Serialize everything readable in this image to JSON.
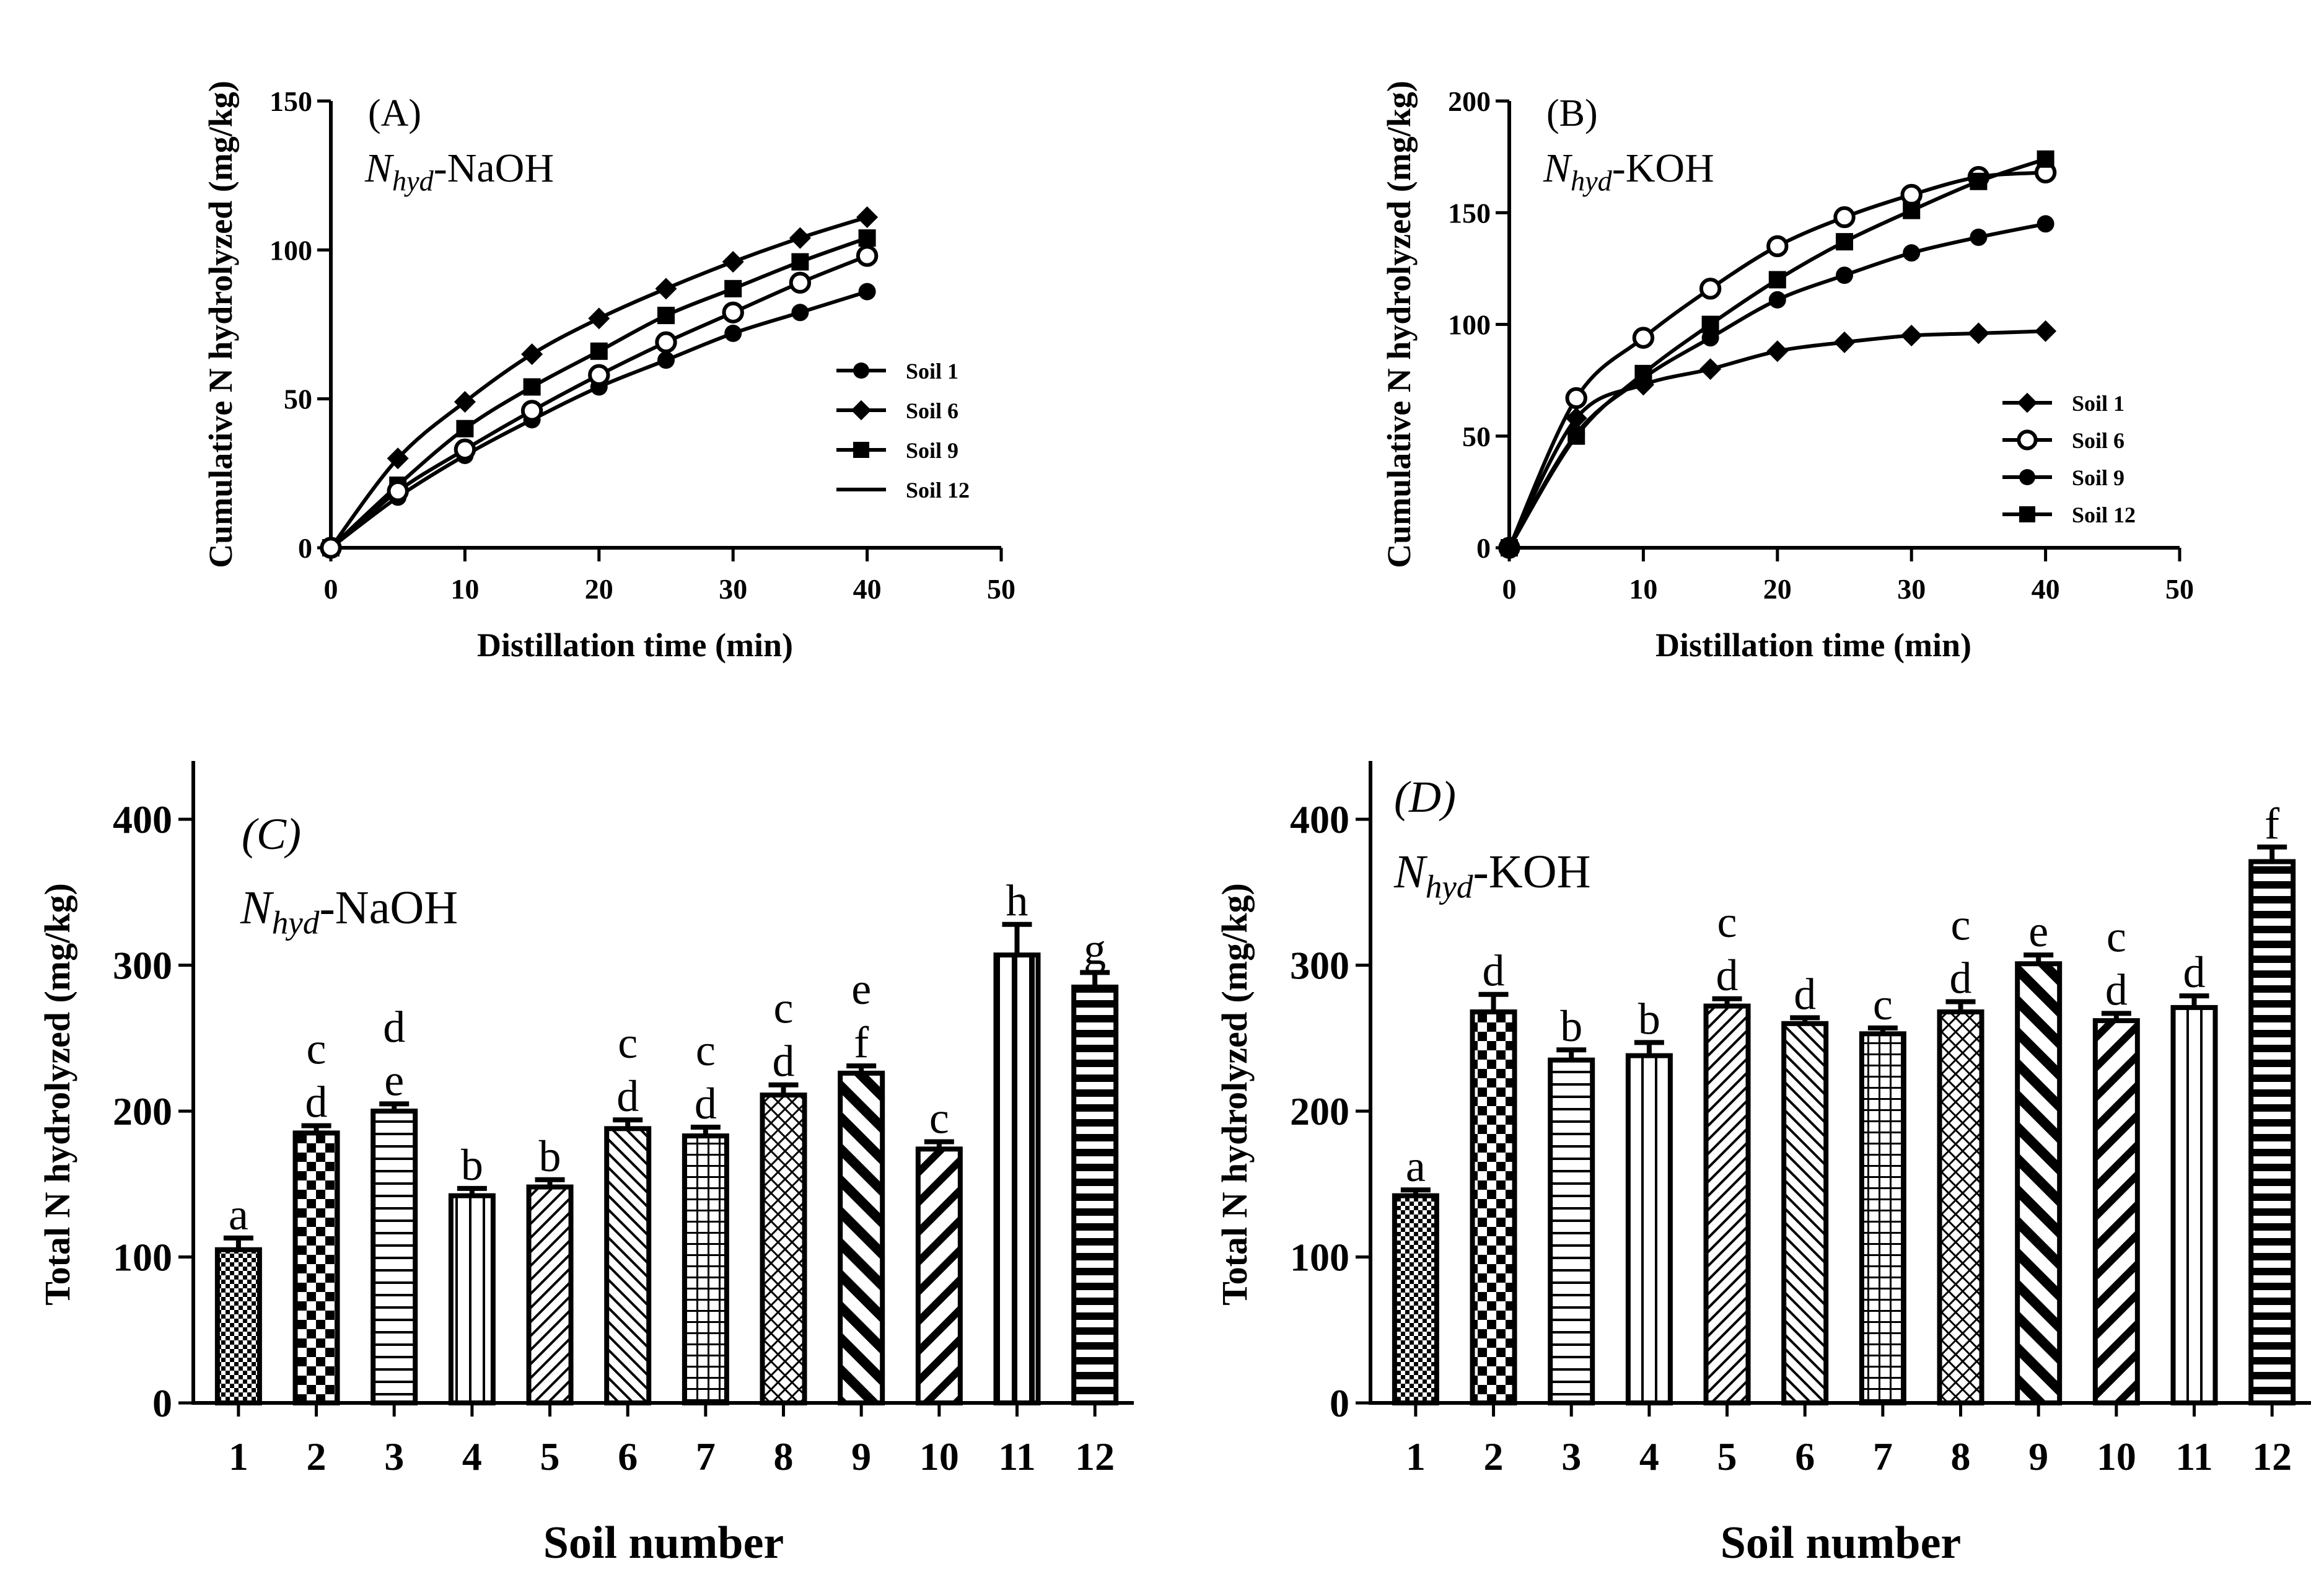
{
  "chart_data": [
    {
      "panel": "(A)",
      "type": "line",
      "title": "-NaOH",
      "title_symbol": "N",
      "title_subscript": "hyd",
      "xlabel": "Distillation time (min)",
      "ylabel": "Cumulative N hydrolyzed (mg/kg)",
      "xlim": [
        0,
        50
      ],
      "ylim": [
        0,
        150
      ],
      "xticks": [
        "0",
        "10",
        "20",
        "30",
        "40",
        "50"
      ],
      "yticks": [
        "0",
        "50",
        "100",
        "150"
      ],
      "x": [
        0,
        5,
        10,
        15,
        20,
        25,
        30,
        35,
        40
      ],
      "legend_position": "center-right",
      "series": [
        {
          "name": "Soil 1",
          "marker": "circle-filled",
          "values": [
            0,
            17,
            31,
            43,
            54,
            63,
            72,
            79,
            86
          ]
        },
        {
          "name": "Soil 6",
          "marker": "diamond-filled",
          "values": [
            0,
            30,
            49,
            65,
            77,
            87,
            96,
            104,
            111
          ]
        },
        {
          "name": "Soil 9",
          "marker": "square-filled",
          "values": [
            0,
            21,
            40,
            54,
            66,
            78,
            87,
            96,
            104
          ]
        },
        {
          "name": "Soil 12",
          "marker": "circle-open",
          "values": [
            0,
            19,
            33,
            46,
            58,
            69,
            79,
            89,
            98
          ]
        }
      ]
    },
    {
      "panel": "(B)",
      "type": "line",
      "title": "-KOH",
      "title_symbol": "N",
      "title_subscript": "hyd",
      "xlabel": "Distillation time (min)",
      "ylabel": "Cumulative N hydrolyzed (mg/kg)",
      "xlim": [
        0,
        50
      ],
      "ylim": [
        0,
        200
      ],
      "xticks": [
        "0",
        "10",
        "20",
        "30",
        "40",
        "50"
      ],
      "yticks": [
        "0",
        "50",
        "100",
        "150",
        "200"
      ],
      "x": [
        0,
        5,
        10,
        15,
        20,
        25,
        30,
        35,
        40
      ],
      "legend_position": "bottom-right",
      "series": [
        {
          "name": "Soil 1",
          "marker": "diamond-filled",
          "values": [
            0,
            58,
            73,
            80,
            88,
            92,
            95,
            96,
            97
          ]
        },
        {
          "name": "Soil 6",
          "marker": "circle-open",
          "values": [
            0,
            67,
            94,
            116,
            135,
            148,
            158,
            166,
            168
          ]
        },
        {
          "name": "Soil 9",
          "marker": "circle-filled",
          "values": [
            0,
            51,
            76,
            94,
            111,
            122,
            132,
            139,
            145
          ]
        },
        {
          "name": "Soil 12",
          "marker": "square-filled",
          "values": [
            0,
            50,
            78,
            100,
            120,
            137,
            151,
            164,
            174
          ]
        }
      ]
    },
    {
      "panel": "(C)",
      "type": "bar",
      "title": "-NaOH",
      "title_symbol": "N",
      "title_subscript": "hyd",
      "xlabel": "Soil number",
      "ylabel": "Total N hydrolyzed (mg/kg)",
      "ylim": [
        0,
        440
      ],
      "yticks": [
        "0",
        "100",
        "200",
        "300",
        "400"
      ],
      "categories": [
        "1",
        "2",
        "3",
        "4",
        "5",
        "6",
        "7",
        "8",
        "9",
        "10",
        "11",
        "12"
      ],
      "values": [
        105,
        185,
        200,
        142,
        148,
        188,
        183,
        211,
        226,
        174,
        307,
        285
      ],
      "errors": [
        8,
        5,
        5,
        5,
        5,
        6,
        6,
        7,
        5,
        5,
        21,
        10
      ],
      "letters_lower": [
        "a",
        "d",
        "e",
        "b",
        "b",
        "d",
        "d",
        "d",
        "f",
        "c",
        "h",
        "g"
      ],
      "letters_upper": [
        "",
        "c",
        "d",
        "",
        "",
        "c",
        "c",
        "c",
        "e",
        "",
        "",
        ""
      ]
    },
    {
      "panel": "(D)",
      "type": "bar",
      "title": "-KOH",
      "title_symbol": "N",
      "title_subscript": "hyd",
      "xlabel": "Soil number",
      "ylabel": "Total N hydrolyzed (mg/kg)",
      "ylim": [
        0,
        440
      ],
      "yticks": [
        "0",
        "100",
        "200",
        "300",
        "400"
      ],
      "categories": [
        "1",
        "2",
        "3",
        "4",
        "5",
        "6",
        "7",
        "8",
        "9",
        "10",
        "11",
        "12"
      ],
      "values": [
        142,
        268,
        235,
        238,
        272,
        260,
        253,
        268,
        301,
        262,
        271,
        371
      ],
      "errors": [
        4,
        12,
        7,
        9,
        5,
        4,
        4,
        7,
        6,
        5,
        8,
        10
      ],
      "letters_lower": [
        "a",
        "d",
        "b",
        "b",
        "d",
        "d",
        "c",
        "d",
        "e",
        "d",
        "d",
        "f"
      ],
      "letters_upper": [
        "",
        "",
        "",
        "",
        "c",
        "",
        "",
        "c",
        "",
        "c",
        "",
        ""
      ]
    }
  ]
}
